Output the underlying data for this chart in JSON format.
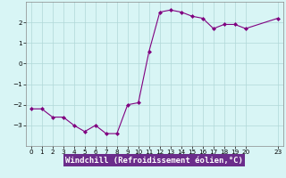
{
  "x": [
    0,
    1,
    2,
    3,
    4,
    5,
    6,
    7,
    8,
    9,
    10,
    11,
    12,
    13,
    14,
    15,
    16,
    17,
    18,
    19,
    20,
    23
  ],
  "y": [
    -2.2,
    -2.2,
    -2.6,
    -2.6,
    -3.0,
    -3.3,
    -3.0,
    -3.4,
    -3.4,
    -2.0,
    -1.9,
    0.6,
    2.5,
    2.6,
    2.5,
    2.3,
    2.2,
    1.7,
    1.9,
    1.9,
    1.7,
    2.2
  ],
  "line_color": "#800080",
  "marker_color": "#800080",
  "bg_color": "#d8f5f5",
  "grid_color": "#b0d8d8",
  "xlabel": "Windchill (Refroidissement éolien,°C)",
  "xlabel_bg": "#6B2D8B",
  "xlabel_color": "#ffffff",
  "ylim": [
    -4,
    3
  ],
  "xlim": [
    -0.5,
    23.5
  ],
  "yticks": [
    -3,
    -2,
    -1,
    0,
    1,
    2
  ],
  "xticks": [
    0,
    1,
    2,
    3,
    4,
    5,
    6,
    7,
    8,
    9,
    10,
    11,
    12,
    13,
    14,
    15,
    16,
    17,
    18,
    19,
    20,
    23
  ],
  "tick_fontsize": 5.2,
  "xlabel_fontsize": 6.5
}
